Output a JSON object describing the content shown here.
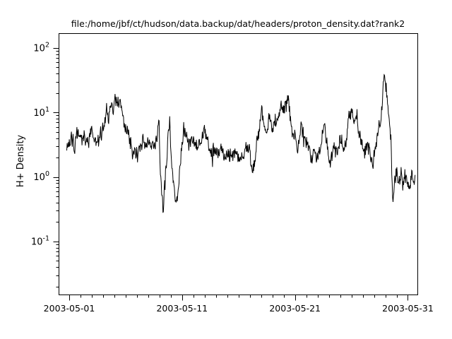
{
  "figure": {
    "background": "#ffffff",
    "line_color": "#000000",
    "text_color": "#000000"
  },
  "chart_data": {
    "type": "line",
    "title": "file:/home/jbf/ct/hudson/data.backup/dat/headers/proton_density.dat?rank2",
    "ylabel": "H+ Density",
    "xlabel": "",
    "y_scale": "log10",
    "ylim": [
      0.015,
      170
    ],
    "xlim": [
      "2003-04-30",
      "2003-06-01"
    ],
    "grid": false,
    "legend": false,
    "y_major_tick_labels": [
      {
        "base": "10",
        "exp": "2",
        "value": 100
      },
      {
        "base": "10",
        "exp": "1",
        "value": 10
      },
      {
        "base": "10",
        "exp": "0",
        "value": 1
      },
      {
        "base": "10",
        "exp": "-1",
        "value": 0.1
      }
    ],
    "y_minor_ticks": "2-9 per decade from 0.02 to 90",
    "x_major_tick_labels": [
      "2003-05-01",
      "2003-05-11",
      "2003-05-21",
      "2003-05-31"
    ],
    "x_major_tick_days": [
      1,
      11,
      21,
      31
    ],
    "x_minor_tick_interval_days": 1,
    "series": [
      {
        "name": "proton_density",
        "color": "#000000",
        "x_unit": "day of 2003-05 (fractional)",
        "noise_log10": 0.12,
        "points": [
          [
            0.81,
            3.5
          ],
          [
            1.0,
            3.1
          ],
          [
            1.2,
            4.2
          ],
          [
            1.45,
            2.7
          ],
          [
            1.7,
            3.8
          ],
          [
            1.95,
            2.9
          ],
          [
            2.2,
            3.4
          ],
          [
            2.45,
            4.6
          ],
          [
            2.7,
            3.1
          ],
          [
            2.95,
            5.6
          ],
          [
            3.2,
            3.4
          ],
          [
            3.5,
            3.0
          ],
          [
            3.8,
            4.2
          ],
          [
            4.05,
            6.5
          ],
          [
            4.3,
            13
          ],
          [
            4.45,
            10
          ],
          [
            4.7,
            18
          ],
          [
            4.9,
            9
          ],
          [
            5.05,
            16
          ],
          [
            5.25,
            12
          ],
          [
            5.5,
            15
          ],
          [
            5.7,
            7.5
          ],
          [
            5.9,
            5.0
          ],
          [
            6.1,
            6.2
          ],
          [
            6.35,
            3.7
          ],
          [
            6.65,
            2.6
          ],
          [
            6.95,
            2.1
          ],
          [
            7.25,
            2.7
          ],
          [
            7.55,
            3.4
          ],
          [
            7.85,
            2.8
          ],
          [
            8.15,
            3.3
          ],
          [
            8.5,
            2.5
          ],
          [
            8.8,
            4.0
          ],
          [
            8.95,
            7.0
          ],
          [
            9.1,
            1.1
          ],
          [
            9.3,
            0.32
          ],
          [
            9.5,
            0.85
          ],
          [
            9.7,
            3.0
          ],
          [
            9.9,
            7.5
          ],
          [
            10.05,
            2.4
          ],
          [
            10.2,
            0.85
          ],
          [
            10.45,
            0.35
          ],
          [
            10.65,
            0.6
          ],
          [
            10.85,
            1.7
          ],
          [
            11.05,
            4.5
          ],
          [
            11.15,
            7.0
          ],
          [
            11.35,
            3.5
          ],
          [
            11.6,
            2.8
          ],
          [
            11.9,
            3.5
          ],
          [
            12.2,
            2.7
          ],
          [
            12.55,
            3.2
          ],
          [
            12.9,
            5.2
          ],
          [
            13.2,
            3.2
          ],
          [
            13.5,
            2.5
          ],
          [
            13.8,
            3.1
          ],
          [
            14.1,
            2.4
          ],
          [
            14.5,
            2.9
          ],
          [
            14.9,
            2.2
          ],
          [
            15.3,
            2.6
          ],
          [
            15.7,
            2.1
          ],
          [
            16.1,
            2.5
          ],
          [
            16.5,
            2.0
          ],
          [
            16.8,
            2.7
          ],
          [
            17.05,
            2.3
          ],
          [
            17.25,
            1.3
          ],
          [
            17.5,
            2.3
          ],
          [
            17.8,
            6.5
          ],
          [
            18.0,
            17
          ],
          [
            18.2,
            8.0
          ],
          [
            18.45,
            6.0
          ],
          [
            18.7,
            8.5
          ],
          [
            19.0,
            5.5
          ],
          [
            19.3,
            6.8
          ],
          [
            19.6,
            9.0
          ],
          [
            19.85,
            13
          ],
          [
            20.05,
            9.5
          ],
          [
            20.25,
            14
          ],
          [
            20.45,
            15
          ],
          [
            20.65,
            7.0
          ],
          [
            20.9,
            5.5
          ],
          [
            21.2,
            4.0
          ],
          [
            21.5,
            5.6
          ],
          [
            21.8,
            3.4
          ],
          [
            22.1,
            4.5
          ],
          [
            22.4,
            2.4
          ],
          [
            22.7,
            3.1
          ],
          [
            23.0,
            2.0
          ],
          [
            23.3,
            3.4
          ],
          [
            23.55,
            8.0
          ],
          [
            23.8,
            4.2
          ],
          [
            24.1,
            1.9
          ],
          [
            24.4,
            2.5
          ],
          [
            24.7,
            3.2
          ],
          [
            25.0,
            3.9
          ],
          [
            25.3,
            3.0
          ],
          [
            25.6,
            4.3
          ],
          [
            25.95,
            11
          ],
          [
            26.2,
            6.0
          ],
          [
            26.45,
            9.5
          ],
          [
            26.75,
            4.2
          ],
          [
            27.05,
            2.6
          ],
          [
            27.4,
            2.1
          ],
          [
            27.85,
            1.4
          ],
          [
            28.15,
            2.8
          ],
          [
            28.45,
            5.5
          ],
          [
            28.65,
            9.0
          ],
          [
            28.8,
            22
          ],
          [
            28.95,
            50
          ],
          [
            29.1,
            24
          ],
          [
            29.3,
            9.0
          ],
          [
            29.5,
            4.5
          ],
          [
            29.67,
            0.45
          ],
          [
            29.85,
            1.2
          ],
          [
            30.0,
            1.3
          ],
          [
            30.2,
            0.8
          ],
          [
            30.4,
            1.15
          ],
          [
            30.55,
            0.75
          ],
          [
            30.7,
            1.25
          ],
          [
            30.9,
            1.0
          ],
          [
            31.15,
            0.62
          ],
          [
            31.35,
            1.4
          ],
          [
            31.55,
            1.0
          ],
          [
            31.7,
            1.25
          ]
        ]
      }
    ]
  }
}
